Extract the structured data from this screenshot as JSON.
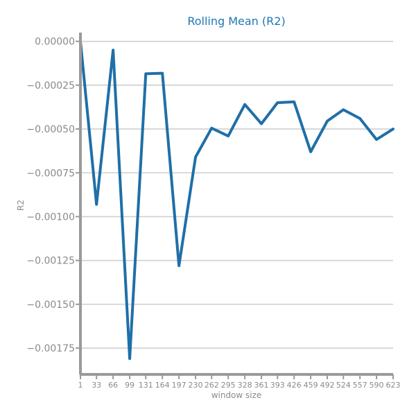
{
  "chart_data": {
    "type": "line",
    "title": "Rolling Mean (R2)",
    "xlabel": "window size",
    "ylabel": "R2",
    "x": [
      1,
      33,
      66,
      99,
      131,
      164,
      197,
      230,
      262,
      295,
      328,
      361,
      393,
      426,
      459,
      492,
      524,
      557,
      590,
      623
    ],
    "x_tick_labels": [
      "1",
      "33",
      "66",
      "99",
      "131",
      "164",
      "197",
      "230",
      "262",
      "295",
      "328",
      "361",
      "393",
      "426",
      "459",
      "492",
      "524",
      "557",
      "590",
      "623"
    ],
    "series": [
      {
        "values": [
          0.0,
          -0.00093,
          -5e-05,
          -0.00181,
          -0.000185,
          -0.000182,
          -0.00128,
          -0.00066,
          -0.000495,
          -0.00054,
          -0.00036,
          -0.00047,
          -0.00035,
          -0.000345,
          -0.00063,
          -0.000455,
          -0.00039,
          -0.00044,
          -0.00056,
          -0.0005
        ]
      }
    ],
    "y_ticks": [
      0.0,
      -0.00025,
      -0.0005,
      -0.00075,
      -0.001,
      -0.00125,
      -0.0015,
      -0.00175
    ],
    "y_tick_labels": [
      "0.00000",
      "−0.00025",
      "−0.00050",
      "−0.00075",
      "−0.00100",
      "−0.00125",
      "−0.00150",
      "−0.00175"
    ],
    "ylim": [
      -0.0019,
      5e-05
    ],
    "xlim": [
      1,
      623
    ],
    "grid": true,
    "colors": {
      "series": "#1f6fa8",
      "title": "#1f77b4",
      "axis": "#9a9a9a",
      "grid": "#cfcfcf",
      "text": "#8a8a8a"
    }
  }
}
